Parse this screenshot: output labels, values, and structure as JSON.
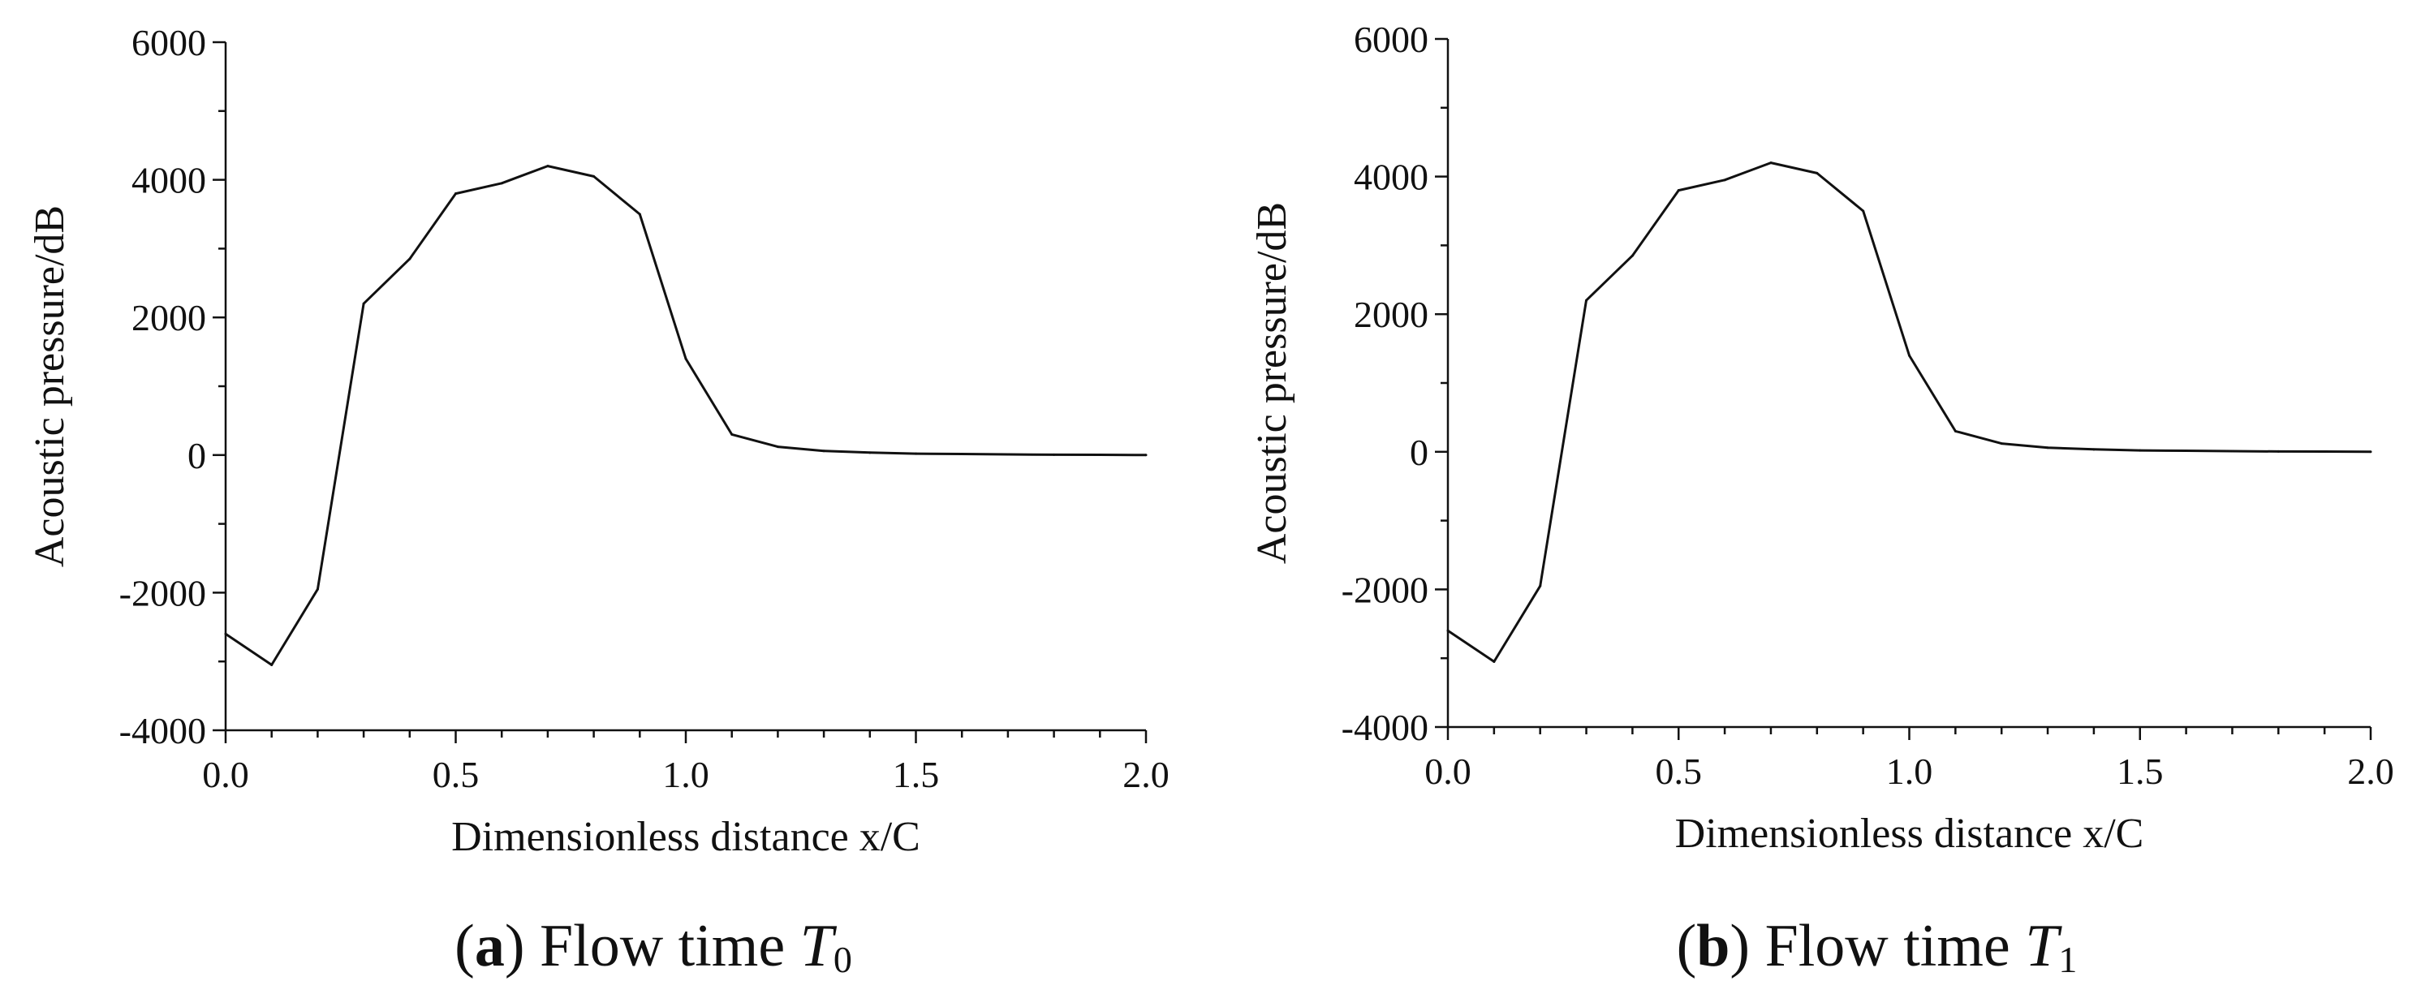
{
  "chart_data": [
    {
      "type": "line",
      "title": "",
      "caption": {
        "letter": "a",
        "open": "(",
        "close": ")",
        "text": " Flow time ",
        "symbol": "T",
        "subscript": "0"
      },
      "xlabel": "Dimensionless distance x/C",
      "ylabel": "Acoustic pressure/dB",
      "xlim": [
        0.0,
        2.0
      ],
      "ylim": [
        -4000,
        6000
      ],
      "xticks": [
        0.0,
        0.5,
        1.0,
        1.5,
        2.0
      ],
      "xtick_labels": [
        "0.0",
        "0.5",
        "1.0",
        "1.5",
        "2.0"
      ],
      "yticks": [
        -4000,
        -2000,
        0,
        2000,
        4000,
        6000
      ],
      "ytick_labels": [
        "-4000",
        "-2000",
        "0",
        "2000",
        "4000",
        "6000"
      ],
      "series": [
        {
          "name": "Acoustic pressure",
          "x": [
            0.0,
            0.1,
            0.2,
            0.3,
            0.4,
            0.5,
            0.6,
            0.7,
            0.8,
            0.9,
            1.0,
            1.1,
            1.2,
            1.3,
            1.4,
            1.5,
            1.6,
            1.7,
            1.8,
            1.9,
            2.0
          ],
          "y": [
            -2600,
            -3050,
            -1950,
            2200,
            2850,
            3800,
            3950,
            4200,
            4050,
            3500,
            1400,
            300,
            120,
            60,
            35,
            20,
            15,
            10,
            5,
            3,
            0
          ]
        }
      ]
    },
    {
      "type": "line",
      "title": "",
      "caption": {
        "letter": "b",
        "open": "(",
        "close": ")",
        "text": " Flow time ",
        "symbol": "T",
        "subscript": "1"
      },
      "xlabel": "Dimensionless distance x/C",
      "ylabel": "Acoustic pressure/dB",
      "xlim": [
        0.0,
        2.0
      ],
      "ylim": [
        -4000,
        6000
      ],
      "xticks": [
        0.0,
        0.5,
        1.0,
        1.5,
        2.0
      ],
      "xtick_labels": [
        "0.0",
        "0.5",
        "1.0",
        "1.5",
        "2.0"
      ],
      "yticks": [
        -4000,
        -2000,
        0,
        2000,
        4000,
        6000
      ],
      "ytick_labels": [
        "-4000",
        "-2000",
        "0",
        "2000",
        "4000",
        "6000"
      ],
      "series": [
        {
          "name": "Acoustic pressure",
          "x": [
            0.0,
            0.1,
            0.2,
            0.3,
            0.4,
            0.5,
            0.6,
            0.7,
            0.8,
            0.9,
            1.0,
            1.1,
            1.2,
            1.3,
            1.4,
            1.5,
            1.6,
            1.7,
            1.8,
            1.9,
            2.0
          ],
          "y": [
            -2600,
            -3050,
            -1950,
            2200,
            2850,
            3800,
            3950,
            4200,
            4050,
            3500,
            1400,
            300,
            120,
            60,
            35,
            20,
            15,
            10,
            5,
            3,
            0
          ]
        }
      ]
    }
  ]
}
